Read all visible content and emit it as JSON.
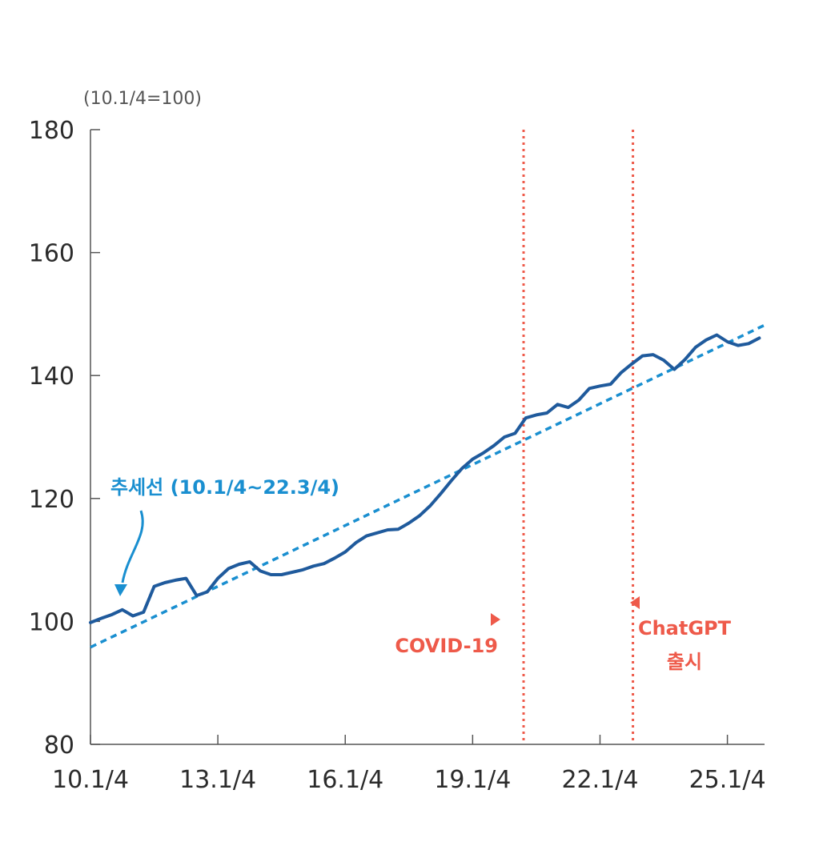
{
  "chart_data": {
    "type": "line",
    "unit_label": "(10.1/4=100)",
    "x_tick_labels": [
      "10.1/4",
      "13.1/4",
      "16.1/4",
      "19.1/4",
      "22.1/4",
      "25.1/4"
    ],
    "x_tick_positions": [
      0,
      12,
      24,
      36,
      48,
      60
    ],
    "y_ticks": [
      80,
      100,
      120,
      140,
      160,
      180
    ],
    "ylim": [
      80,
      180
    ],
    "xlim": [
      0,
      63.5
    ],
    "grid": false,
    "series": [
      {
        "values": [
          99.8,
          100.5,
          101.1,
          101.9,
          100.9,
          101.5,
          105.7,
          106.3,
          106.7,
          107.0,
          104.2,
          104.8,
          107.0,
          108.6,
          109.3,
          109.7,
          108.2,
          107.6,
          107.6,
          108.0,
          108.4,
          109.0,
          109.4,
          110.3,
          111.3,
          112.8,
          113.9,
          114.4,
          114.9,
          115.0,
          116.0,
          117.2,
          118.8,
          120.8,
          122.9,
          124.9,
          126.4,
          127.4,
          128.6,
          130.0,
          130.6,
          133.1,
          133.6,
          133.9,
          135.3,
          134.8,
          136.0,
          137.9,
          138.3,
          138.6,
          140.5,
          141.9,
          143.2,
          143.4,
          142.5,
          141.0,
          142.6,
          144.6,
          145.8,
          146.6,
          145.5,
          144.9,
          145.2,
          146.1
        ],
        "color": "#1f5a9c",
        "style": "solid"
      },
      {
        "name": "추세선 (10.1/4~22.3/4)",
        "start": [
          0,
          95.8
        ],
        "end": [
          63.5,
          148.2
        ],
        "color": "#1a8fd0",
        "style": "dotted"
      }
    ],
    "events": [
      {
        "label": "COVID-19",
        "x": 40.8,
        "color": "#ee5a4a"
      },
      {
        "label": "ChatGPT",
        "label2": "출시",
        "x": 51.1,
        "color": "#ee5a4a"
      }
    ]
  }
}
